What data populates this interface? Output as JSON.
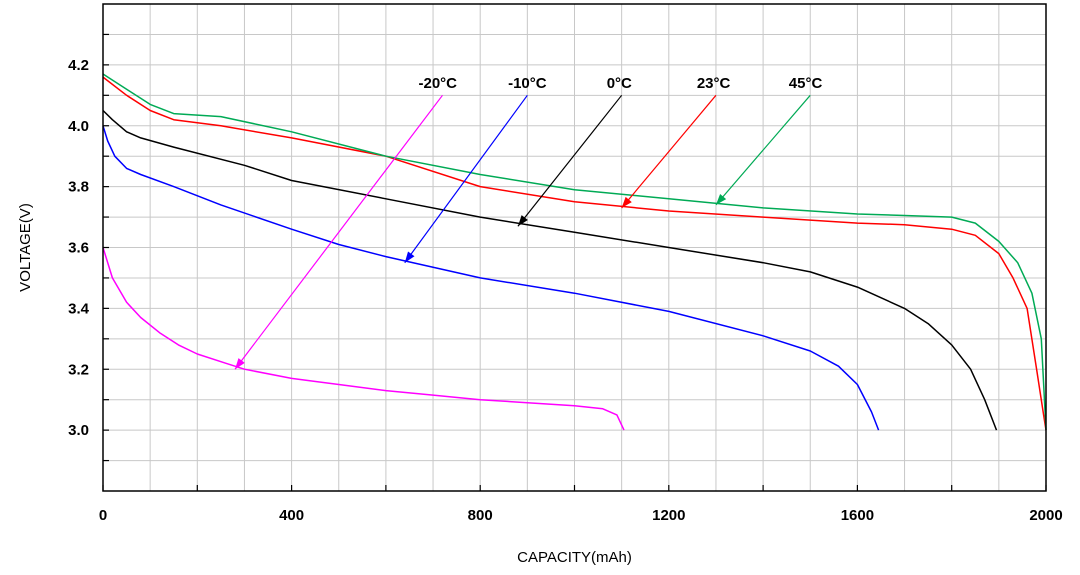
{
  "chart_data": {
    "type": "line",
    "xlabel": "CAPACITY(mAh)",
    "ylabel": "VOLTAGE(V)",
    "xlim": [
      0,
      2000
    ],
    "ylim": [
      2.8,
      4.4
    ],
    "x_ticks": [
      "0",
      "400",
      "800",
      "1200",
      "1600",
      "2000"
    ],
    "y_ticks": [
      "3.0",
      "3.2",
      "3.4",
      "3.6",
      "3.8",
      "4.0",
      "4.2"
    ],
    "grid": true,
    "series": [
      {
        "name": "-20°C",
        "color": "#ff00ff",
        "points": [
          [
            0,
            3.6
          ],
          [
            20,
            3.5
          ],
          [
            50,
            3.42
          ],
          [
            80,
            3.37
          ],
          [
            120,
            3.32
          ],
          [
            160,
            3.28
          ],
          [
            200,
            3.25
          ],
          [
            260,
            3.22
          ],
          [
            300,
            3.2
          ],
          [
            400,
            3.17
          ],
          [
            500,
            3.15
          ],
          [
            600,
            3.13
          ],
          [
            700,
            3.115
          ],
          [
            800,
            3.1
          ],
          [
            900,
            3.09
          ],
          [
            1000,
            3.08
          ],
          [
            1060,
            3.07
          ],
          [
            1090,
            3.05
          ],
          [
            1105,
            3.0
          ]
        ],
        "arrow_tip": [
          280,
          3.2
        ],
        "label_anchor": [
          720,
          4.1
        ]
      },
      {
        "name": "-10°C",
        "color": "#0000ff",
        "points": [
          [
            0,
            4.0
          ],
          [
            10,
            3.95
          ],
          [
            25,
            3.9
          ],
          [
            50,
            3.86
          ],
          [
            80,
            3.84
          ],
          [
            150,
            3.8
          ],
          [
            250,
            3.74
          ],
          [
            400,
            3.66
          ],
          [
            500,
            3.61
          ],
          [
            600,
            3.57
          ],
          [
            800,
            3.5
          ],
          [
            1000,
            3.45
          ],
          [
            1200,
            3.39
          ],
          [
            1400,
            3.31
          ],
          [
            1500,
            3.26
          ],
          [
            1560,
            3.21
          ],
          [
            1600,
            3.15
          ],
          [
            1630,
            3.06
          ],
          [
            1645,
            3.0
          ]
        ],
        "arrow_tip": [
          640,
          3.55
        ],
        "label_anchor": [
          900,
          4.1
        ]
      },
      {
        "name": "0°C",
        "color": "#000000",
        "points": [
          [
            0,
            4.05
          ],
          [
            20,
            4.02
          ],
          [
            50,
            3.98
          ],
          [
            80,
            3.96
          ],
          [
            150,
            3.93
          ],
          [
            300,
            3.87
          ],
          [
            400,
            3.82
          ],
          [
            600,
            3.76
          ],
          [
            800,
            3.7
          ],
          [
            1000,
            3.65
          ],
          [
            1200,
            3.6
          ],
          [
            1400,
            3.55
          ],
          [
            1500,
            3.52
          ],
          [
            1600,
            3.47
          ],
          [
            1700,
            3.4
          ],
          [
            1750,
            3.35
          ],
          [
            1800,
            3.28
          ],
          [
            1840,
            3.2
          ],
          [
            1870,
            3.1
          ],
          [
            1895,
            3.0
          ]
        ],
        "arrow_tip": [
          880,
          3.67
        ],
        "label_anchor": [
          1100,
          4.1
        ]
      },
      {
        "name": "23°C",
        "color": "#ff0000",
        "points": [
          [
            0,
            4.16
          ],
          [
            50,
            4.1
          ],
          [
            100,
            4.05
          ],
          [
            150,
            4.02
          ],
          [
            250,
            4.0
          ],
          [
            400,
            3.96
          ],
          [
            600,
            3.9
          ],
          [
            800,
            3.8
          ],
          [
            1000,
            3.75
          ],
          [
            1200,
            3.72
          ],
          [
            1400,
            3.7
          ],
          [
            1600,
            3.68
          ],
          [
            1700,
            3.675
          ],
          [
            1800,
            3.66
          ],
          [
            1850,
            3.64
          ],
          [
            1900,
            3.58
          ],
          [
            1930,
            3.5
          ],
          [
            1960,
            3.4
          ],
          [
            1980,
            3.2
          ],
          [
            1995,
            3.05
          ],
          [
            2000,
            3.0
          ]
        ],
        "arrow_tip": [
          1100,
          3.73
        ],
        "label_anchor": [
          1300,
          4.1
        ]
      },
      {
        "name": "45°C",
        "color": "#00aa55",
        "points": [
          [
            0,
            4.17
          ],
          [
            50,
            4.12
          ],
          [
            100,
            4.07
          ],
          [
            150,
            4.04
          ],
          [
            250,
            4.03
          ],
          [
            400,
            3.98
          ],
          [
            600,
            3.9
          ],
          [
            800,
            3.84
          ],
          [
            1000,
            3.79
          ],
          [
            1200,
            3.76
          ],
          [
            1400,
            3.73
          ],
          [
            1600,
            3.71
          ],
          [
            1700,
            3.705
          ],
          [
            1800,
            3.7
          ],
          [
            1850,
            3.68
          ],
          [
            1900,
            3.62
          ],
          [
            1940,
            3.55
          ],
          [
            1970,
            3.45
          ],
          [
            1990,
            3.3
          ],
          [
            2000,
            3.0
          ]
        ],
        "arrow_tip": [
          1300,
          3.74
        ],
        "label_anchor": [
          1500,
          4.1
        ]
      }
    ],
    "series_labels": [
      {
        "text": "-20°C",
        "x": 710,
        "y": 4.14
      },
      {
        "text": "-10°C",
        "x": 900,
        "y": 4.14
      },
      {
        "text": "0°C",
        "x": 1095,
        "y": 4.14
      },
      {
        "text": "23°C",
        "x": 1295,
        "y": 4.14
      },
      {
        "text": "45°C",
        "x": 1490,
        "y": 4.14
      }
    ]
  }
}
